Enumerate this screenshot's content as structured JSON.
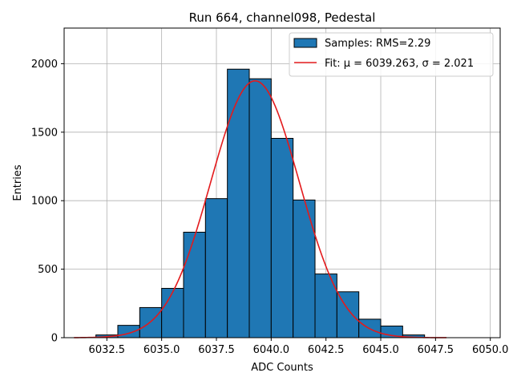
{
  "chart_data": {
    "type": "bar",
    "title": "Run 664, channel098, Pedestal",
    "xlabel": "ADC Counts",
    "ylabel": "Entries",
    "xlim": [
      6030.55,
      6050.45
    ],
    "ylim": [
      0,
      2260
    ],
    "grid": true,
    "xticks": [
      6032.5,
      6035.0,
      6037.5,
      6040.0,
      6042.5,
      6045.0,
      6047.5,
      6050.0
    ],
    "xtick_labels": [
      "6032.5",
      "6035.0",
      "6037.5",
      "6040.0",
      "6042.5",
      "6045.0",
      "6047.5",
      "6050.0"
    ],
    "yticks": [
      0,
      500,
      1000,
      1500,
      2000
    ],
    "ytick_labels": [
      "0",
      "500",
      "1000",
      "1500",
      "2000"
    ],
    "bin_edges": [
      6032,
      6033,
      6034,
      6035,
      6036,
      6037,
      6038,
      6039,
      6040,
      6041,
      6042,
      6043,
      6044,
      6045,
      6046,
      6047
    ],
    "values": [
      20,
      90,
      220,
      360,
      770,
      1015,
      1960,
      1890,
      1455,
      1005,
      465,
      335,
      135,
      85,
      20
    ],
    "bar_color": "#1f77b4",
    "fit": {
      "mu": 6039.263,
      "sigma": 2.021,
      "amplitude": 1875,
      "x_range": [
        6031,
        6048
      ],
      "color": "#e31a1c"
    },
    "legend": {
      "position": "top-right",
      "entries": [
        {
          "label": "Samples: RMS=2.29"
        },
        {
          "label": "Fit: μ = 6039.263, σ = 2.021"
        }
      ]
    }
  }
}
